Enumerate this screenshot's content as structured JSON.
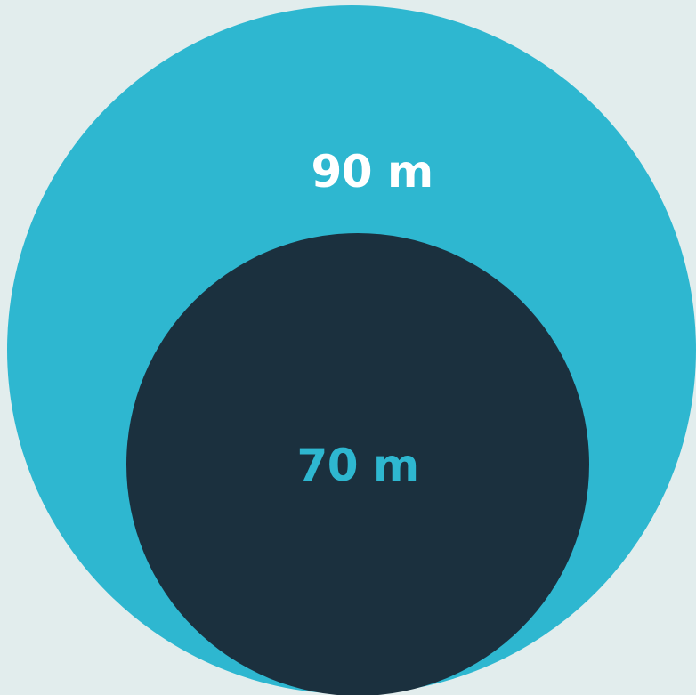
{
  "diagram": {
    "outer": {
      "label": "90 m",
      "value": 90,
      "unit": "m",
      "color": "#2eb7d0"
    },
    "inner": {
      "label": "70 m",
      "value": 70,
      "unit": "m",
      "color": "#1b303e"
    },
    "background_color": "#e2eded",
    "outer_label_color": "#ffffff",
    "inner_label_color": "#2eb7d0"
  }
}
